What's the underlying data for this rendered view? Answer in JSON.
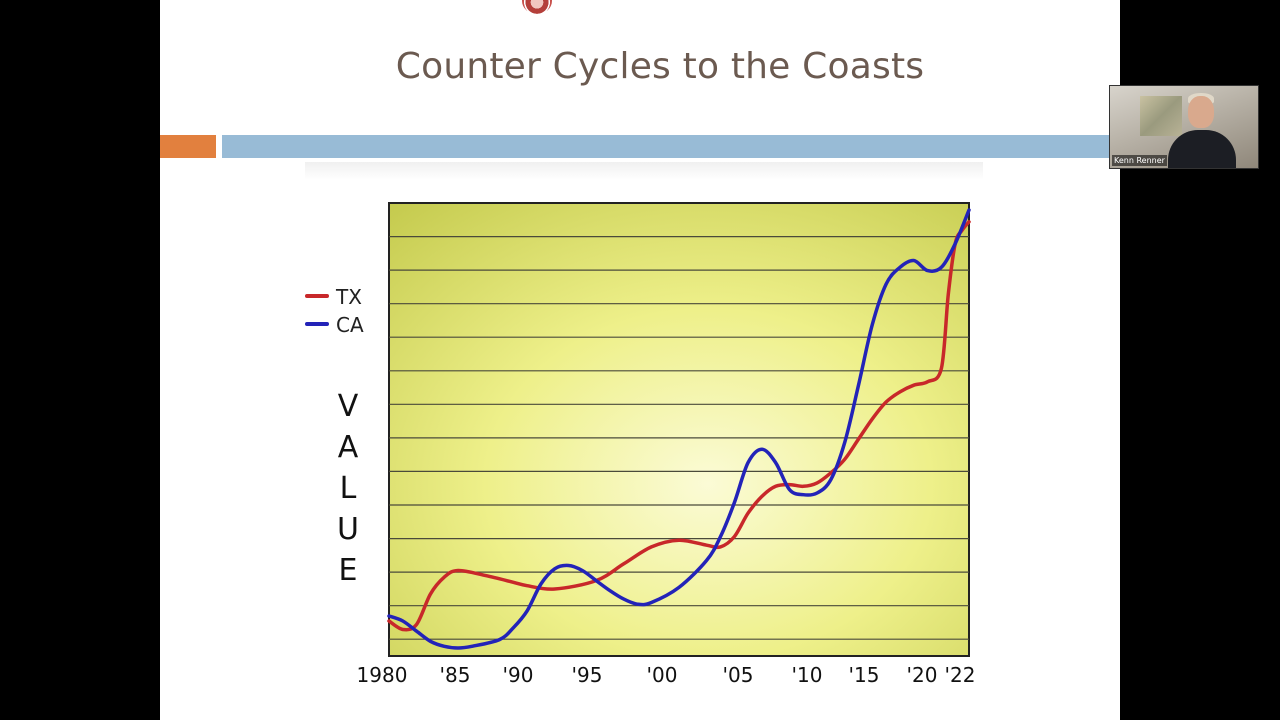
{
  "slide": {
    "title": "Counter Cycles to the Coasts",
    "colors": {
      "title": "#6b5a50",
      "accent_orange": "#e2803e",
      "accent_blue": "#98bbd6"
    }
  },
  "participant": {
    "name": "Kenn Renner"
  },
  "chart_data": {
    "type": "line",
    "title": "",
    "xlabel": "",
    "ylabel": "VALUE",
    "tick_labels": [
      "1980",
      "'85",
      "'90",
      "'95",
      "'00",
      "'05",
      "'10",
      "'15",
      "'20",
      "'22"
    ],
    "xlim": [
      1980,
      2022
    ],
    "ylim": [
      0,
      13
    ],
    "grid": true,
    "legend_placement": "top-left outside",
    "series": [
      {
        "name": "TX",
        "color": "#c8282a",
        "x": [
          1980,
          1981,
          1982,
          1983,
          1984,
          1985,
          1987,
          1989,
          1990,
          1992,
          1995,
          1997,
          1999,
          2001,
          2003,
          2004,
          2005,
          2006,
          2007,
          2008,
          2009,
          2010,
          2011,
          2012,
          2013,
          2014,
          2015,
          2016,
          2017,
          2018,
          2019,
          2020,
          2020.5,
          2021,
          2021.5,
          2022
        ],
        "y": [
          0.8,
          0.55,
          0.7,
          1.6,
          2.1,
          2.3,
          2.15,
          1.95,
          1.85,
          1.75,
          2.0,
          2.5,
          3.0,
          3.2,
          3.05,
          3.0,
          3.3,
          4.0,
          4.5,
          4.8,
          4.85,
          4.8,
          4.9,
          5.2,
          5.6,
          6.2,
          6.8,
          7.3,
          7.6,
          7.8,
          7.9,
          8.3,
          10.5,
          12.0,
          12.4,
          12.65
        ]
      },
      {
        "name": "CA",
        "color": "#2323b8",
        "x": [
          1980,
          1981,
          1982,
          1983,
          1984,
          1985,
          1986,
          1988,
          1989,
          1990,
          1991,
          1992,
          1993,
          1994,
          1995,
          1996,
          1997,
          1998,
          1999,
          2001,
          2003,
          2004,
          2005,
          2006,
          2007,
          2008,
          2009,
          2010,
          2011,
          2012,
          2013,
          2014,
          2015,
          2016,
          2017,
          2018,
          2019,
          2020,
          2021,
          2022
        ],
        "y": [
          0.95,
          0.8,
          0.5,
          0.2,
          0.05,
          0.0,
          0.05,
          0.25,
          0.6,
          1.1,
          1.9,
          2.35,
          2.45,
          2.3,
          2.0,
          1.7,
          1.45,
          1.3,
          1.35,
          1.8,
          2.6,
          3.3,
          4.3,
          5.5,
          5.9,
          5.5,
          4.7,
          4.55,
          4.6,
          5.0,
          6.1,
          7.8,
          9.6,
          10.8,
          11.3,
          11.5,
          11.2,
          11.3,
          12.0,
          13.0
        ]
      }
    ]
  }
}
